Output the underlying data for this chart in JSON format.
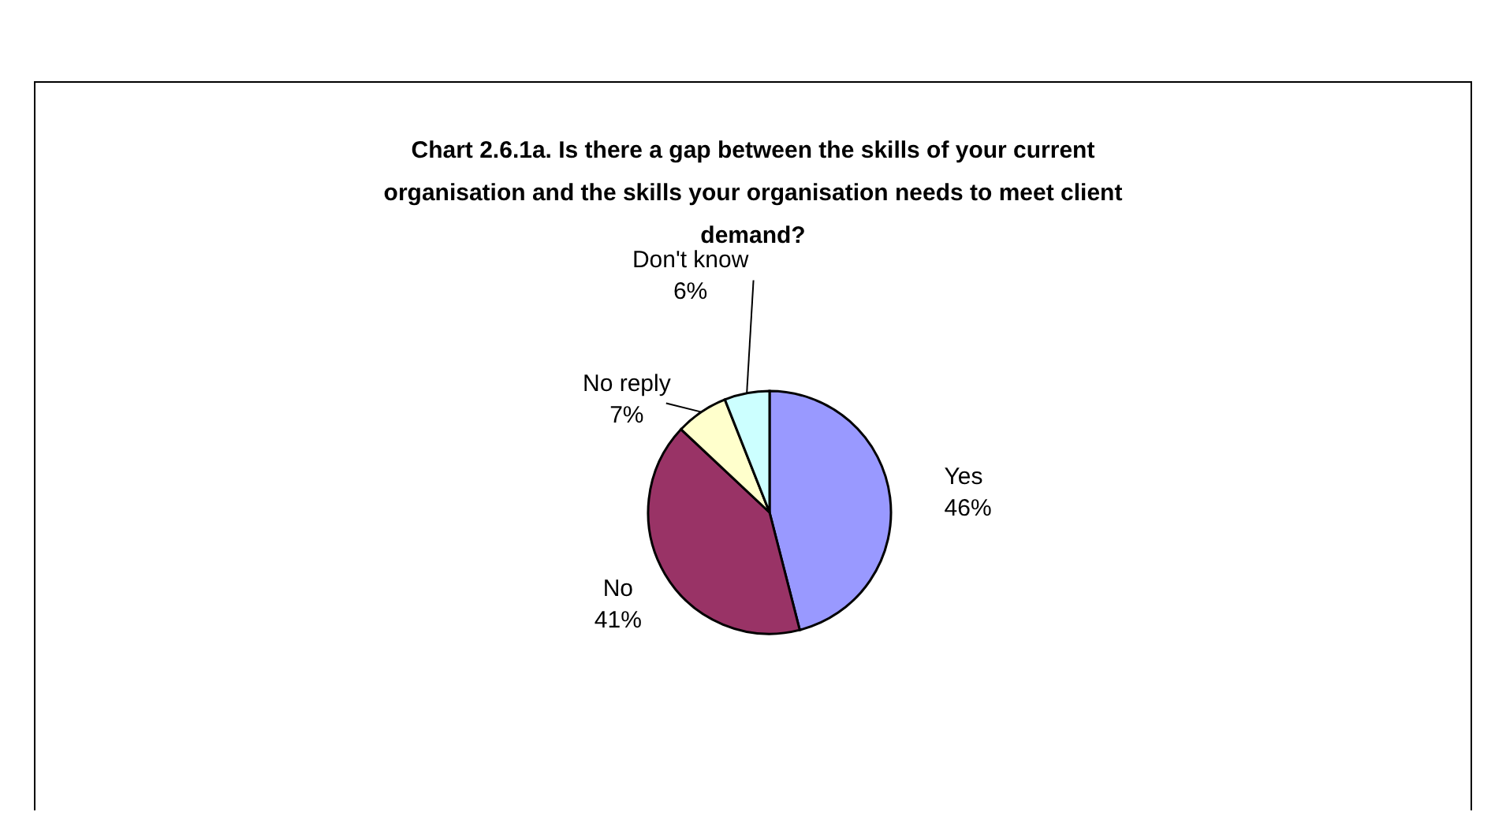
{
  "chart_data": {
    "type": "pie",
    "title": "Chart 2.6.1a. Is there a gap between the skills of your current organisation and the skills your organisation needs to meet client demand?",
    "categories": [
      "Yes",
      "No",
      "No reply",
      "Don't know"
    ],
    "values": [
      46,
      41,
      7,
      6
    ],
    "colors": [
      "#9999ff",
      "#993366",
      "#ffffcc",
      "#ccffff"
    ],
    "value_labels": [
      "46%",
      "41%",
      "7%",
      "6%"
    ],
    "legend": false
  }
}
